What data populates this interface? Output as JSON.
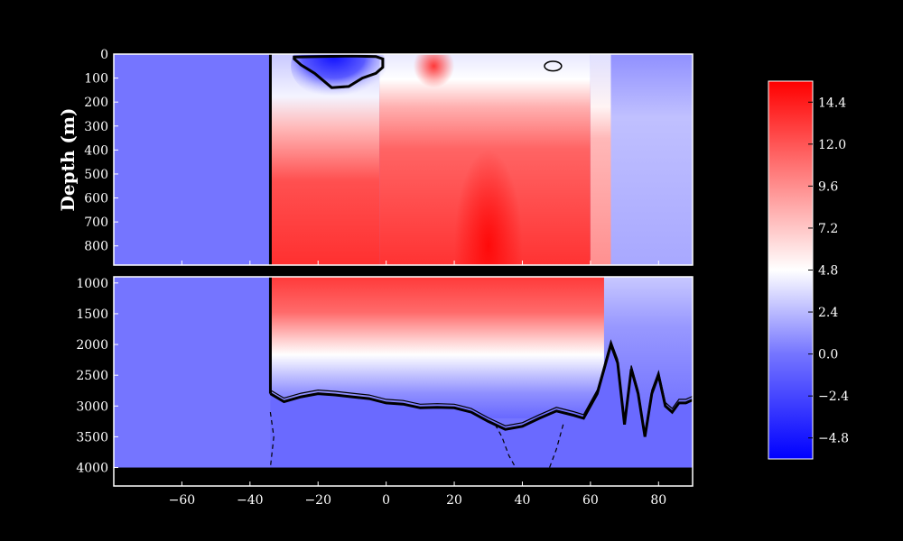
{
  "chart_data": {
    "type": "heatmap",
    "title": "",
    "xlabel": "",
    "ylabel": "Depth (m)",
    "xlim": [
      -80,
      90
    ],
    "x_ticks": [
      -60,
      -40,
      -20,
      0,
      20,
      40,
      60,
      80
    ],
    "x_tick_labels": [
      "−60",
      "−40",
      "−20",
      "0",
      "20",
      "40",
      "60",
      "80"
    ],
    "panels": [
      {
        "name": "upper",
        "ylim": [
          880,
          0
        ],
        "y_ticks": [
          0,
          100,
          200,
          300,
          400,
          500,
          600,
          700,
          800
        ],
        "y_tick_labels": [
          "0",
          "100",
          "200",
          "300",
          "400",
          "500",
          "600",
          "700",
          "800"
        ]
      },
      {
        "name": "lower",
        "ylim": [
          4300,
          900
        ],
        "y_ticks": [
          1000,
          1500,
          2000,
          2500,
          3000,
          3500,
          4000
        ],
        "y_tick_labels": [
          "1000",
          "1500",
          "2000",
          "2500",
          "3000",
          "3500",
          "4000"
        ]
      }
    ],
    "colorbar": {
      "colormap": "bwr",
      "range": [
        -6,
        15.6
      ],
      "ticks": [
        -4.8,
        -2.4,
        0.0,
        2.4,
        4.8,
        7.2,
        9.6,
        12.0,
        14.4
      ],
      "tick_labels": [
        "−4.8",
        "−2.4",
        "0.0",
        "2.4",
        "4.8",
        "7.2",
        "9.6",
        "12.0",
        "14.4"
      ]
    },
    "land_boundary_x": -34,
    "land_value": 0.0,
    "upper_features": [
      {
        "x": -28,
        "depth_top": 0,
        "depth_bottom": 140,
        "x_end": -1,
        "value": -4.5,
        "label": "cold surface pool"
      },
      {
        "x": 14,
        "depth": 50,
        "value": 14.0,
        "label": "warm surface core"
      },
      {
        "x": 30,
        "depth": 800,
        "value": 15.5,
        "label": "deep warm core"
      }
    ],
    "lower_contour_depth": [
      [
        -34,
        2800
      ],
      [
        -30,
        2930
      ],
      [
        -25,
        2850
      ],
      [
        -20,
        2800
      ],
      [
        -15,
        2820
      ],
      [
        -10,
        2850
      ],
      [
        -5,
        2880
      ],
      [
        0,
        2950
      ],
      [
        5,
        2970
      ],
      [
        10,
        3030
      ],
      [
        15,
        3020
      ],
      [
        20,
        3030
      ],
      [
        25,
        3100
      ],
      [
        30,
        3250
      ],
      [
        35,
        3380
      ],
      [
        40,
        3330
      ],
      [
        45,
        3200
      ],
      [
        50,
        3080
      ],
      [
        55,
        3150
      ],
      [
        58,
        3200
      ],
      [
        62,
        2800
      ],
      [
        64,
        2400
      ],
      [
        66,
        2000
      ],
      [
        68,
        2300
      ],
      [
        70,
        3300
      ],
      [
        72,
        2400
      ],
      [
        74,
        2800
      ],
      [
        76,
        3500
      ],
      [
        78,
        2800
      ],
      [
        80,
        2500
      ],
      [
        82,
        3000
      ],
      [
        84,
        3100
      ],
      [
        86,
        2950
      ],
      [
        88,
        2950
      ],
      [
        90,
        2900
      ]
    ],
    "bottom_mask_depth": 4000
  }
}
